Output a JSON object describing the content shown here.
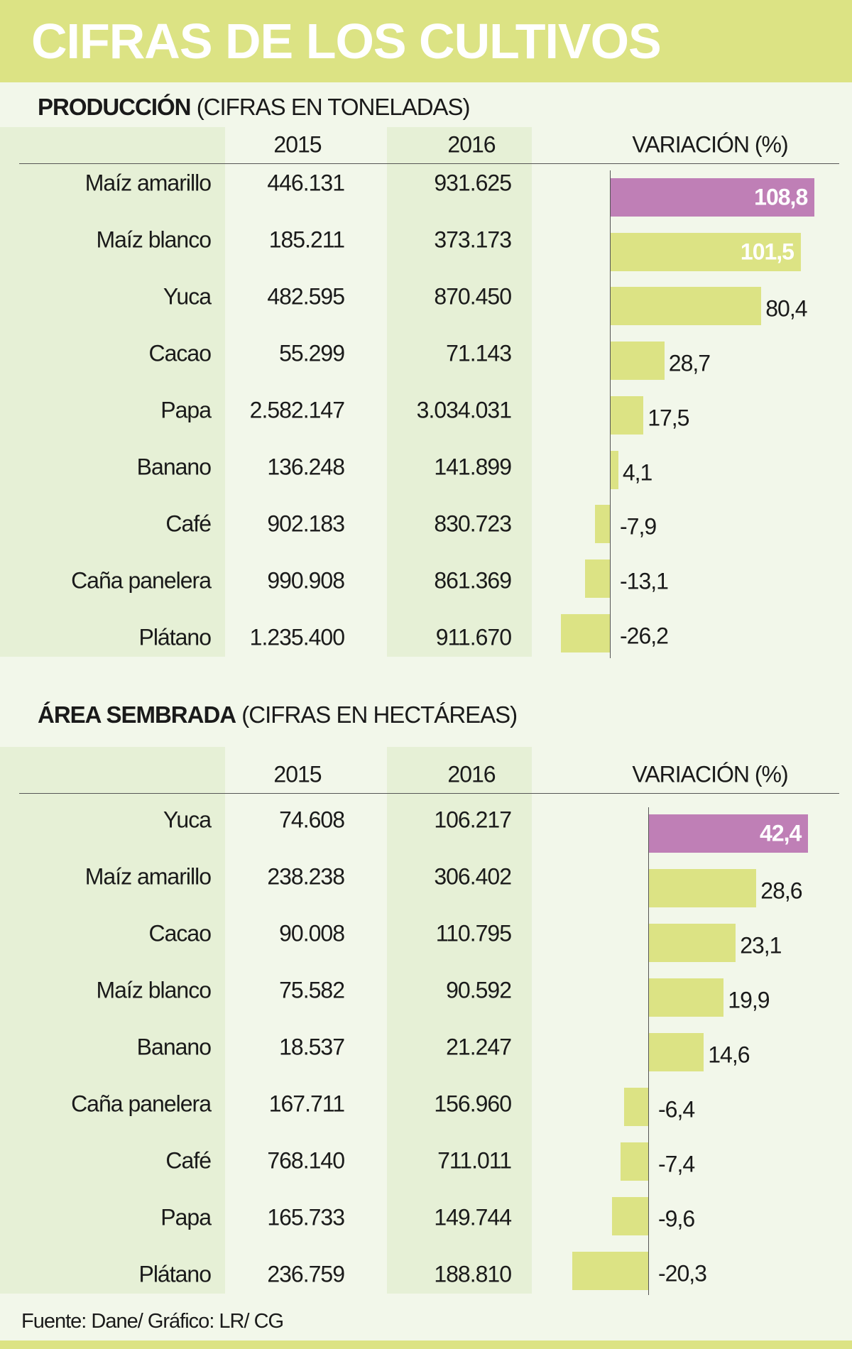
{
  "colors": {
    "header": "#dce384",
    "bar": "#dce384",
    "highlight": "#bf7fb6",
    "background": "#f2f7ea",
    "shade": "#e6f0d6"
  },
  "title": "CIFRAS DE LOS CULTIVOS",
  "footer": "Fuente: Dane/ Gráfico: LR/ CG",
  "chart_data": [
    {
      "type": "table",
      "title": "PRODUCCIÓN",
      "subtitle": "(CIFRAS EN TONELADAS)",
      "columns": [
        "2015",
        "2016",
        "VARIACIÓN (%)"
      ],
      "rows": [
        {
          "label": "Maíz amarillo",
          "y2015": "446.131",
          "y2016": "931.625",
          "var": 108.8,
          "var_label": "108,8",
          "highlight": true
        },
        {
          "label": "Maíz blanco",
          "y2015": "185.211",
          "y2016": "373.173",
          "var": 101.5,
          "var_label": "101,5",
          "inside": true
        },
        {
          "label": "Yuca",
          "y2015": "482.595",
          "y2016": "870.450",
          "var": 80.4,
          "var_label": "80,4"
        },
        {
          "label": "Cacao",
          "y2015": "55.299",
          "y2016": "71.143",
          "var": 28.7,
          "var_label": "28,7"
        },
        {
          "label": "Papa",
          "y2015": "2.582.147",
          "y2016": "3.034.031",
          "var": 17.5,
          "var_label": "17,5"
        },
        {
          "label": "Banano",
          "y2015": "136.248",
          "y2016": "141.899",
          "var": 4.1,
          "var_label": "4,1"
        },
        {
          "label": "Café",
          "y2015": "902.183",
          "y2016": "830.723",
          "var": -7.9,
          "var_label": "-7,9"
        },
        {
          "label": "Caña panelera",
          "y2015": "990.908",
          "y2016": "861.369",
          "var": -13.1,
          "var_label": "-13,1"
        },
        {
          "label": "Plátano",
          "y2015": "1.235.400",
          "y2016": "911.670",
          "var": -26.2,
          "var_label": "-26,2"
        }
      ]
    },
    {
      "type": "table",
      "title": "ÁREA SEMBRADA",
      "subtitle": "(CIFRAS EN HECTÁREAS)",
      "columns": [
        "2015",
        "2016",
        "VARIACIÓN (%)"
      ],
      "rows": [
        {
          "label": "Yuca",
          "y2015": "74.608",
          "y2016": "106.217",
          "var": 42.4,
          "var_label": "42,4",
          "highlight": true
        },
        {
          "label": "Maíz amarillo",
          "y2015": "238.238",
          "y2016": "306.402",
          "var": 28.6,
          "var_label": "28,6"
        },
        {
          "label": "Cacao",
          "y2015": "90.008",
          "y2016": "110.795",
          "var": 23.1,
          "var_label": "23,1"
        },
        {
          "label": "Maíz blanco",
          "y2015": "75.582",
          "y2016": "90.592",
          "var": 19.9,
          "var_label": "19,9"
        },
        {
          "label": "Banano",
          "y2015": "18.537",
          "y2016": "21.247",
          "var": 14.6,
          "var_label": "14,6"
        },
        {
          "label": "Caña panelera",
          "y2015": "167.711",
          "y2016": "156.960",
          "var": -6.4,
          "var_label": "-6,4"
        },
        {
          "label": "Café",
          "y2015": "768.140",
          "y2016": "711.011",
          "var": -7.4,
          "var_label": "-7,4"
        },
        {
          "label": "Papa",
          "y2015": "165.733",
          "y2016": "149.744",
          "var": -9.6,
          "var_label": "-9,6"
        },
        {
          "label": "Plátano",
          "y2015": "236.759",
          "y2016": "188.810",
          "var": -20.3,
          "var_label": "-20,3"
        }
      ]
    }
  ]
}
